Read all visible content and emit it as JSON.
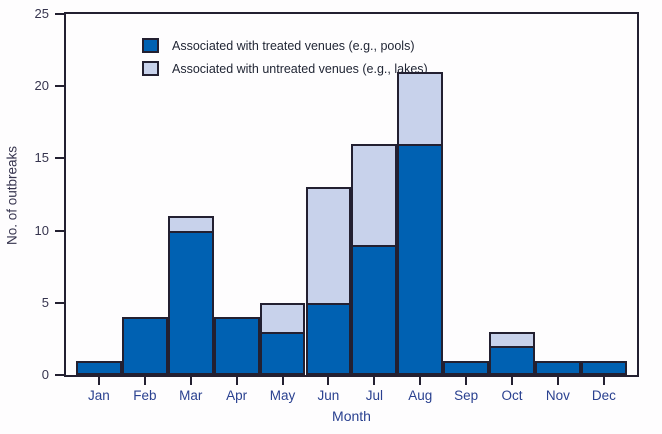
{
  "chart_data": {
    "type": "bar",
    "stacked": true,
    "title": "",
    "xlabel": "Month",
    "ylabel": "No. of outbreaks",
    "categories": [
      "Jan",
      "Feb",
      "Mar",
      "Apr",
      "May",
      "Jun",
      "Jul",
      "Aug",
      "Sep",
      "Oct",
      "Nov",
      "Dec"
    ],
    "series": [
      {
        "name": "Associated with treated venues (e.g., pools)",
        "color": "#0061b2",
        "values": [
          1,
          4,
          10,
          4,
          3,
          5,
          9,
          16,
          1,
          2,
          1,
          1
        ]
      },
      {
        "name": "Associated with untreated venues (e.g., lakes)",
        "color": "#c8d2eb",
        "values": [
          0,
          0,
          1,
          0,
          2,
          8,
          7,
          5,
          0,
          1,
          0,
          0
        ]
      }
    ],
    "totals": [
      1,
      4,
      11,
      4,
      5,
      13,
      16,
      21,
      1,
      3,
      1,
      1
    ],
    "ylim": [
      0,
      25
    ],
    "yticks": [
      0,
      5,
      10,
      15,
      20,
      25
    ],
    "grid": false,
    "legend_position": "top-left-inside",
    "colors": {
      "bar_border": "#232031",
      "axis": "#232031",
      "y_text": "#36344e",
      "x_text": "#2a4190",
      "legend_text": "#1f2433",
      "background": "#fefdfe"
    }
  }
}
